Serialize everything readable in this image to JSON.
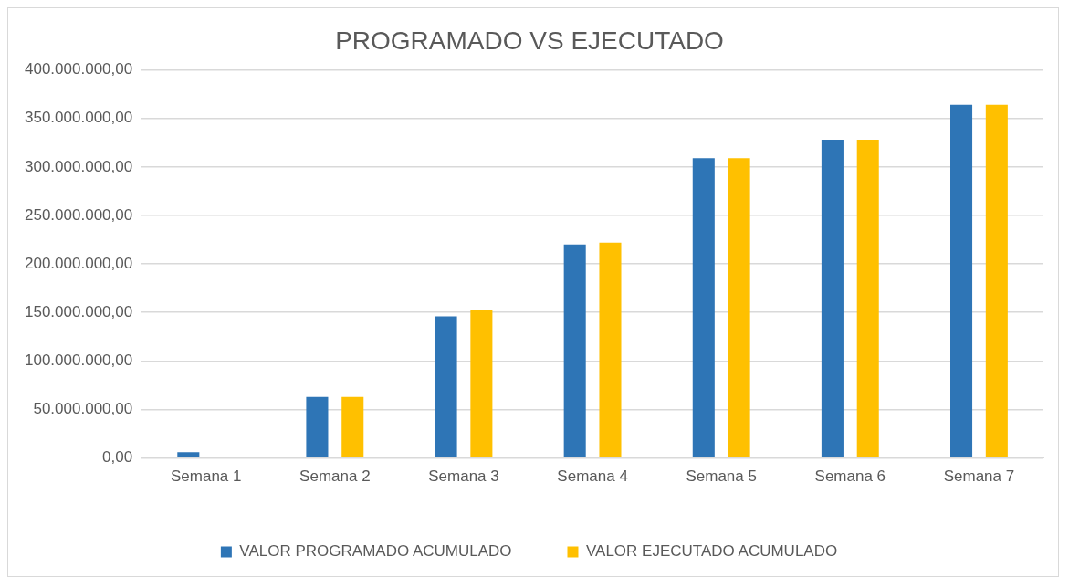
{
  "chart_data": {
    "type": "bar",
    "title": "PROGRAMADO VS EJECUTADO",
    "categories": [
      "Semana 1",
      "Semana 2",
      "Semana 3",
      "Semana 4",
      "Semana 5",
      "Semana 6",
      "Semana 7"
    ],
    "series": [
      {
        "name": "VALOR PROGRAMADO ACUMULADO",
        "color": "#2e75b6",
        "values": [
          6000000,
          63000000,
          146000000,
          220000000,
          309000000,
          328000000,
          364000000
        ]
      },
      {
        "name": "VALOR EJECUTADO ACUMULADO",
        "color": "#ffc000",
        "values": [
          1500000,
          63000000,
          152000000,
          222000000,
          309000000,
          328000000,
          364000000
        ]
      }
    ],
    "ylim": [
      0,
      400000000
    ],
    "yticks": [
      {
        "value": 0,
        "label": "0,00"
      },
      {
        "value": 50000000,
        "label": "50.000.000,00"
      },
      {
        "value": 100000000,
        "label": "100.000.000,00"
      },
      {
        "value": 150000000,
        "label": "150.000.000,00"
      },
      {
        "value": 200000000,
        "label": "200.000.000,00"
      },
      {
        "value": 250000000,
        "label": "250.000.000,00"
      },
      {
        "value": 300000000,
        "label": "300.000.000,00"
      },
      {
        "value": 350000000,
        "label": "350.000.000,00"
      },
      {
        "value": 400000000,
        "label": "400.000.000,00"
      }
    ],
    "grid": "y",
    "legend": "bottom"
  }
}
